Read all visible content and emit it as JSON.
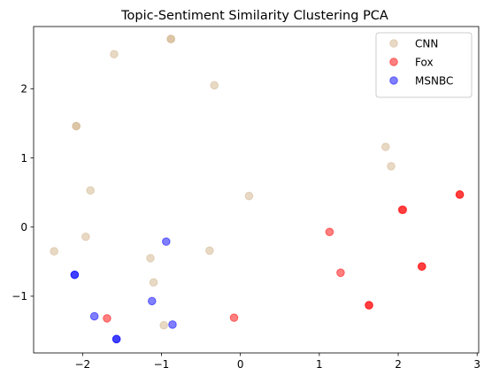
{
  "chart_data": {
    "type": "scatter",
    "title": "Topic-Sentiment Similarity Clustering PCA",
    "xlabel": "",
    "ylabel": "",
    "xlim": [
      -2.62,
      3.02
    ],
    "ylim": [
      -1.82,
      2.9
    ],
    "xticks": [
      -2,
      -1,
      0,
      1,
      2,
      3
    ],
    "yticks": [
      -1,
      0,
      1,
      2
    ],
    "grid": false,
    "legend_position": "top-right",
    "series": [
      {
        "name": "CNN",
        "color": "#d2b48c",
        "points": [
          {
            "x": -0.88,
            "y": 2.72
          },
          {
            "x": -0.88,
            "y": 2.72
          },
          {
            "x": -1.6,
            "y": 2.5
          },
          {
            "x": -0.33,
            "y": 2.05
          },
          {
            "x": -2.08,
            "y": 1.46
          },
          {
            "x": -2.08,
            "y": 1.46
          },
          {
            "x": 1.84,
            "y": 1.16
          },
          {
            "x": 1.91,
            "y": 0.88
          },
          {
            "x": -1.9,
            "y": 0.53
          },
          {
            "x": 0.11,
            "y": 0.45
          },
          {
            "x": -1.96,
            "y": -0.14
          },
          {
            "x": -2.36,
            "y": -0.35
          },
          {
            "x": -0.39,
            "y": -0.34
          },
          {
            "x": -1.14,
            "y": -0.45
          },
          {
            "x": -1.1,
            "y": -0.8
          },
          {
            "x": -0.97,
            "y": -1.42
          }
        ]
      },
      {
        "name": "Fox",
        "color": "#ff0000",
        "points": [
          {
            "x": 2.78,
            "y": 0.47
          },
          {
            "x": 2.78,
            "y": 0.47
          },
          {
            "x": 2.06,
            "y": 0.25
          },
          {
            "x": 2.05,
            "y": 0.25
          },
          {
            "x": 1.13,
            "y": -0.07
          },
          {
            "x": 2.3,
            "y": -0.57
          },
          {
            "x": 2.3,
            "y": -0.57
          },
          {
            "x": 1.27,
            "y": -0.66
          },
          {
            "x": 1.63,
            "y": -1.13
          },
          {
            "x": 1.63,
            "y": -1.13
          },
          {
            "x": -0.08,
            "y": -1.31
          },
          {
            "x": -1.69,
            "y": -1.32
          }
        ]
      },
      {
        "name": "MSNBC",
        "color": "#0000ff",
        "points": [
          {
            "x": -0.94,
            "y": -0.21
          },
          {
            "x": -2.1,
            "y": -0.69
          },
          {
            "x": -2.1,
            "y": -0.69
          },
          {
            "x": -1.12,
            "y": -1.07
          },
          {
            "x": -1.85,
            "y": -1.29
          },
          {
            "x": -0.86,
            "y": -1.41
          },
          {
            "x": -1.57,
            "y": -1.62
          },
          {
            "x": -1.57,
            "y": -1.62
          }
        ]
      }
    ]
  }
}
